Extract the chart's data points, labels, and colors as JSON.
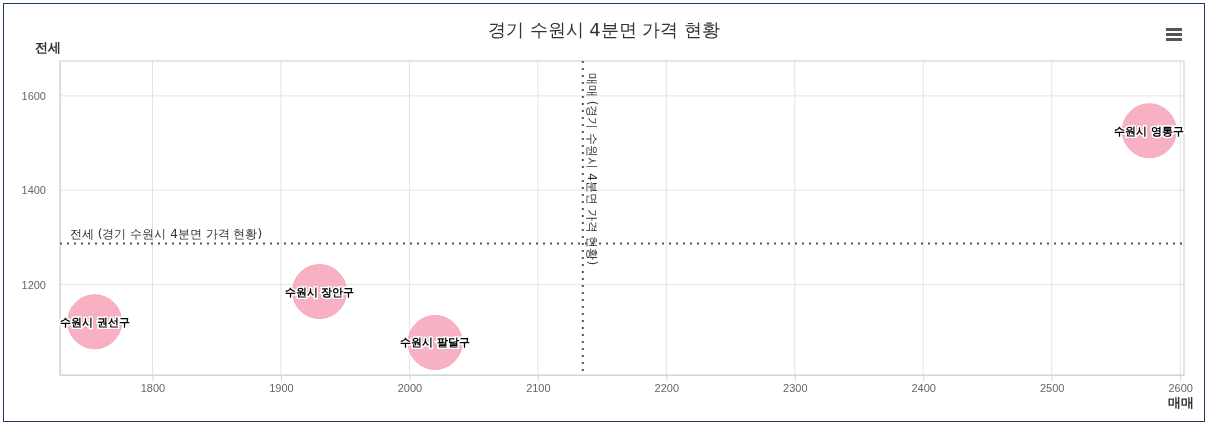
{
  "chart_data": {
    "type": "bubble",
    "title": "경기 수원시 4분면 가격 현황",
    "xlabel": "매매",
    "ylabel": "전세",
    "x": [
      1755,
      1930,
      2020,
      2576
    ],
    "values": [
      1121,
      1185,
      1077,
      1526
    ],
    "sizes": [
      1,
      1,
      1,
      1
    ],
    "color": "#f7a8bb",
    "xlim": [
      1728,
      2603
    ],
    "xticks": [
      1800,
      1900,
      2000,
      2100,
      2200,
      2300,
      2400,
      2500,
      2600
    ],
    "ylim": [
      1008,
      1674
    ],
    "yticks": [
      1200,
      1400,
      1600
    ],
    "grid": true,
    "ref_lines": [
      {
        "axis": "x",
        "value": 2135,
        "label": "매매 (경기 수원시 4분면 가격 현황)",
        "color": "#555555",
        "line_style": "dotted"
      },
      {
        "axis": "y",
        "value": 1287,
        "label": "전세 (경기 수원시 4분면 가격 현황)",
        "color": "#555555",
        "line_style": "dotted"
      }
    ],
    "annotations": [
      {
        "text": "수원시 권선구",
        "x": 1755,
        "y": 1121
      },
      {
        "text": "수원시 장안구",
        "x": 1930,
        "y": 1185
      },
      {
        "text": "수원시 팔달구",
        "x": 2020,
        "y": 1077
      },
      {
        "text": "수원시 영통구",
        "x": 2576,
        "y": 1526
      }
    ]
  }
}
